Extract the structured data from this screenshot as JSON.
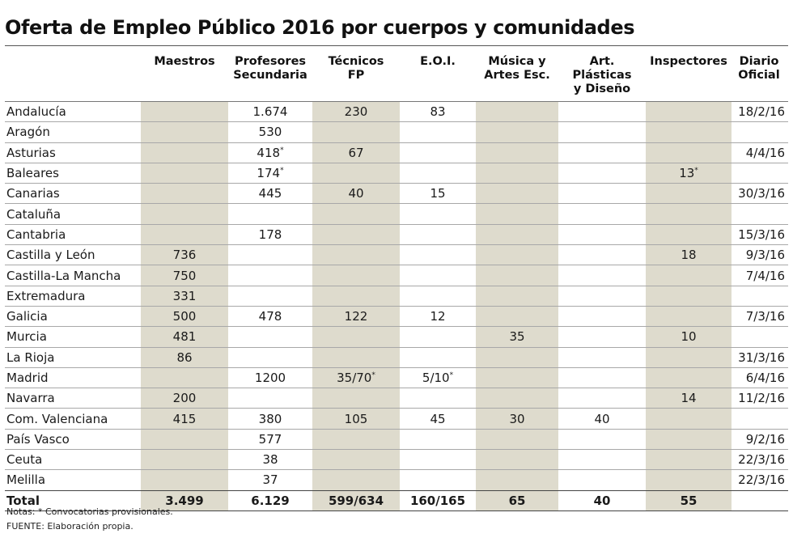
{
  "title": "Oferta de Empleo Público 2016 por cuerpos y comunidades",
  "headers": [
    "",
    "Maestros",
    "Profesores\nSecundaria",
    "Técnicos\nFP",
    "E.O.I.",
    "Música y\nArtes Esc.",
    "Art. Plásticas\ny Diseño",
    "Inspectores",
    "Diario\nOficial"
  ],
  "rows": [
    [
      "Andalucía",
      "",
      "1.674",
      "230",
      "83",
      "",
      "",
      "",
      "18/2/16"
    ],
    [
      "Aragón",
      "",
      "530",
      "",
      "",
      "",
      "",
      "",
      ""
    ],
    [
      "Asturias",
      "",
      "418*",
      "67",
      "",
      "",
      "",
      "",
      "4/4/16"
    ],
    [
      "Baleares",
      "",
      "174*",
      "",
      "",
      "",
      "",
      "13*",
      ""
    ],
    [
      "Canarias",
      "",
      "445",
      "40",
      "15",
      "",
      "",
      "",
      "30/3/16"
    ],
    [
      "Cataluña",
      "",
      "",
      "",
      "",
      "",
      "",
      "",
      ""
    ],
    [
      "Cantabria",
      "",
      "178",
      "",
      "",
      "",
      "",
      "",
      "15/3/16"
    ],
    [
      "Castilla y León",
      "736",
      "",
      "",
      "",
      "",
      "",
      "18",
      "9/3/16"
    ],
    [
      "Castilla-La Mancha",
      "750",
      "",
      "",
      "",
      "",
      "",
      "",
      "7/4/16"
    ],
    [
      "Extremadura",
      "331",
      "",
      "",
      "",
      "",
      "",
      "",
      ""
    ],
    [
      "Galicia",
      "500",
      "478",
      "122",
      "12",
      "",
      "",
      "",
      "7/3/16"
    ],
    [
      "Murcia",
      "481",
      "",
      "",
      "",
      "35",
      "",
      "10",
      ""
    ],
    [
      "La Rioja",
      "86",
      "",
      "",
      "",
      "",
      "",
      "",
      "31/3/16"
    ],
    [
      "Madrid",
      "",
      "1200",
      "35/70*",
      "5/10*",
      "",
      "",
      "",
      "6/4/16"
    ],
    [
      "Navarra",
      "200",
      "",
      "",
      "",
      "",
      "",
      "14",
      "11/2/16"
    ],
    [
      "Com. Valenciana",
      "415",
      "380",
      "105",
      "45",
      "30",
      "40",
      "",
      ""
    ],
    [
      "País Vasco",
      "",
      "577",
      "",
      "",
      "",
      "",
      "",
      "9/2/16"
    ],
    [
      "Ceuta",
      "",
      "38",
      "",
      "",
      "",
      "",
      "",
      "22/3/16"
    ],
    [
      "Melilla",
      "",
      "37",
      "",
      "",
      "",
      "",
      "",
      "22/3/16"
    ]
  ],
  "total": [
    "Total",
    "3.499",
    "6.129",
    "599/634",
    "160/165",
    "65",
    "40",
    "55",
    ""
  ],
  "notes": "Notas: * Convocatorias provisionales.",
  "source": "FUENTE: Elaboración propia.",
  "colors": {
    "shade": "#dedbcd"
  }
}
